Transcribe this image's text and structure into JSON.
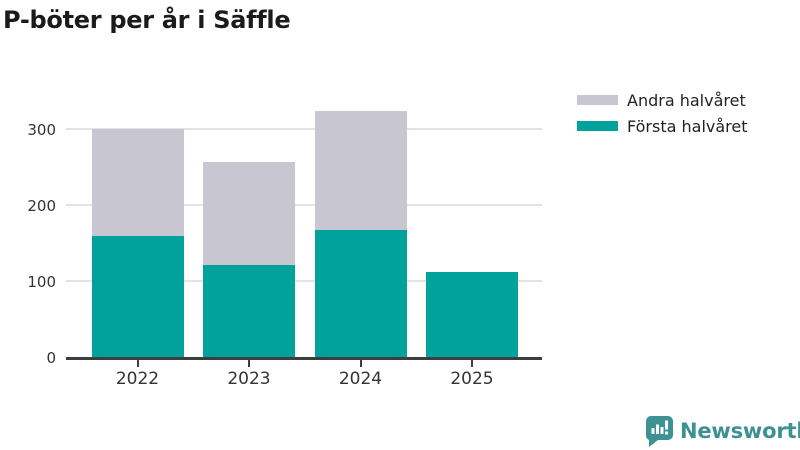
{
  "header": {
    "title": "P-böter per år i Säffle"
  },
  "chart_data": {
    "type": "bar",
    "stacked": true,
    "title": "P-böter per år i Säffle",
    "categories": [
      "2022",
      "2023",
      "2024",
      "2025"
    ],
    "series": [
      {
        "name": "Andra halvåret",
        "color": "#c8c6d0",
        "values": [
          141,
          135,
          157,
          0
        ]
      },
      {
        "name": "Första halvåret",
        "color": "#00a29b",
        "values": [
          160,
          123,
          168,
          113
        ]
      }
    ],
    "stack_order_bottom_to_top": [
      "Första halvåret",
      "Andra halvåret"
    ],
    "yticks": [
      0,
      100,
      200,
      300
    ],
    "ylim": [
      0,
      340
    ],
    "xlabel": "",
    "ylabel": "",
    "grid": true,
    "legend_position": "top-right",
    "axis_color": "#3e3e3e",
    "gridline_color": "#e4e4e4",
    "tick_label_color": "#333333"
  },
  "footer": {
    "brand": "Newsworthy",
    "brand_color": "#3d9193"
  }
}
